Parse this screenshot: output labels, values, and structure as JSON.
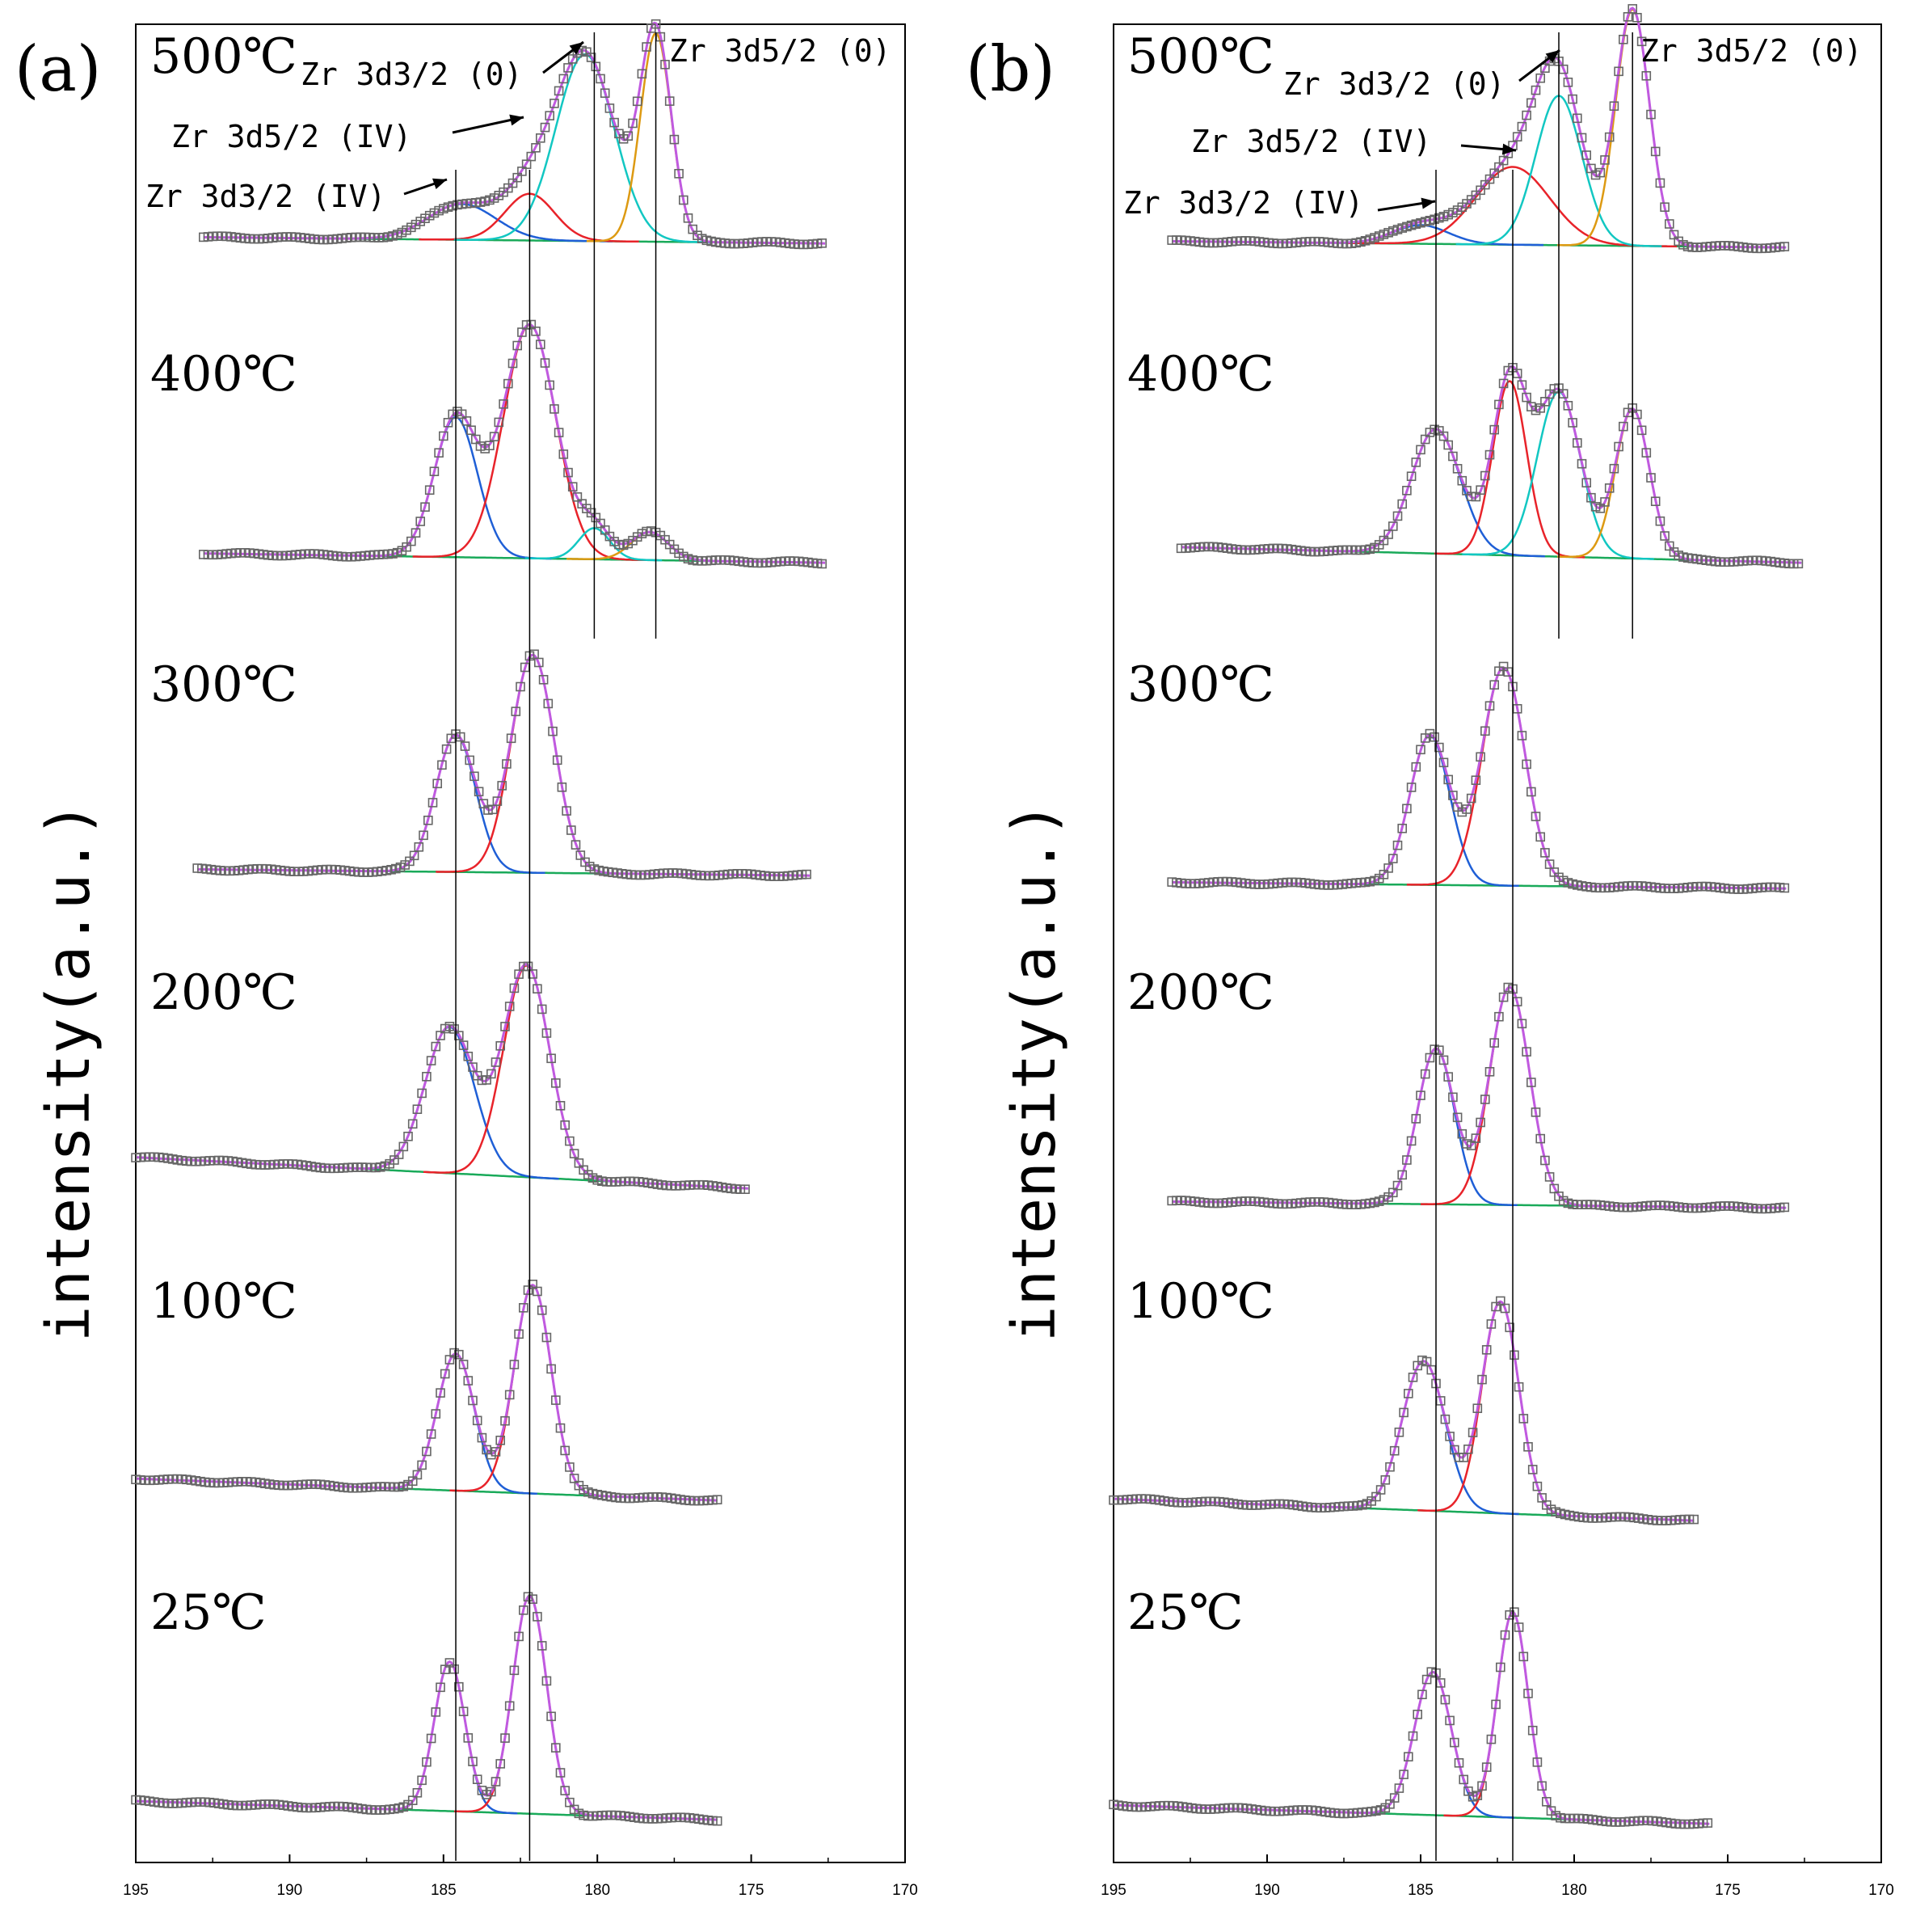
{
  "chart_data": [
    {
      "type": "line",
      "panel": "(a)",
      "ylabel": "intensity(a.u.)",
      "xlim": [
        195,
        170
      ],
      "x_ticks": [
        "195",
        "190",
        "185",
        "180",
        "175",
        "170"
      ],
      "reference_lines_eV": [
        184.6,
        182.2,
        180.1,
        178.1
      ],
      "peak_labels": [
        {
          "text": "Zr 3d3/2 (0)",
          "x_eV": 180.5
        },
        {
          "text": "Zr 3d5/2 (0)",
          "x_eV": 178.1
        },
        {
          "text": "Zr 3d5/2 (IV)",
          "x_eV": 182.0
        },
        {
          "text": "Zr 3d3/2 (IV)",
          "x_eV": 184.4
        }
      ],
      "spectra": [
        {
          "temperature": "500℃",
          "range_eV": [
            192.8,
            172.6
          ],
          "bg_left": 0.03,
          "bg_right": 0.01,
          "peaks": [
            {
              "name": "Zr 3d3/2 (IV)",
              "center": 184.4,
              "amp": 0.115,
              "sigma": 1.1,
              "color": "#1f5fd6"
            },
            {
              "name": "Zr 3d5/2 (IV)",
              "center": 182.2,
              "amp": 0.15,
              "sigma": 0.8,
              "color": "#e8232a"
            },
            {
              "name": "Zr 3d3/2 (0)",
              "center": 180.4,
              "amp": 0.6,
              "sigma": 0.95,
              "color": "#12c7c2"
            },
            {
              "name": "Zr 3d5/2 (0)",
              "center": 178.1,
              "amp": 0.67,
              "sigma": 0.5,
              "color": "#dd9a12"
            }
          ]
        },
        {
          "temperature": "400℃",
          "range_eV": [
            192.8,
            172.6
          ],
          "bg_left": 0.04,
          "bg_right": 0.01,
          "peaks": [
            {
              "name": "Zr 3d3/2 (IV)",
              "center": 184.6,
              "amp": 0.45,
              "sigma": 0.7,
              "color": "#1f5fd6"
            },
            {
              "name": "Zr 3d5/2 (IV)",
              "center": 182.2,
              "amp": 0.75,
              "sigma": 0.85,
              "color": "#e8232a"
            },
            {
              "name": "Zr 3d3/2 (0)",
              "center": 180.1,
              "amp": 0.1,
              "sigma": 0.5,
              "color": "#12c7c2"
            },
            {
              "name": "Zr 3d5/2 (0)",
              "center": 178.3,
              "amp": 0.09,
              "sigma": 0.6,
              "color": "#dd9a12"
            }
          ]
        },
        {
          "temperature": "300℃",
          "range_eV": [
            193.0,
            173.1
          ],
          "bg_left": 0.03,
          "bg_right": 0.01,
          "peaks": [
            {
              "name": "Zr 3d3/2 (IV)",
              "center": 184.6,
              "amp": 0.44,
              "sigma": 0.65,
              "color": "#1f5fd6"
            },
            {
              "name": "Zr 3d5/2 (IV)",
              "center": 182.1,
              "amp": 0.7,
              "sigma": 0.7,
              "color": "#e8232a"
            }
          ]
        },
        {
          "temperature": "200℃",
          "range_eV": [
            195.0,
            175.1
          ],
          "bg_left": 0.11,
          "bg_right": 0.01,
          "peaks": [
            {
              "name": "Zr 3d3/2 (IV)",
              "center": 184.8,
              "amp": 0.47,
              "sigma": 0.8,
              "color": "#1f5fd6"
            },
            {
              "name": "Zr 3d5/2 (IV)",
              "center": 182.3,
              "amp": 0.68,
              "sigma": 0.75,
              "color": "#e8232a"
            }
          ]
        },
        {
          "temperature": "100℃",
          "range_eV": [
            195.0,
            176.1
          ],
          "bg_left": 0.08,
          "bg_right": 0.01,
          "peaks": [
            {
              "name": "Zr 3d3/2 (IV)",
              "center": 184.6,
              "amp": 0.44,
              "sigma": 0.6,
              "color": "#1f5fd6"
            },
            {
              "name": "Zr 3d5/2 (IV)",
              "center": 182.1,
              "amp": 0.67,
              "sigma": 0.6,
              "color": "#e8232a"
            }
          ]
        },
        {
          "temperature": "25℃",
          "range_eV": [
            195.0,
            176.1
          ],
          "bg_left": 0.07,
          "bg_right": 0.01,
          "peaks": [
            {
              "name": "Zr 3d3/2 (IV)",
              "center": 184.8,
              "amp": 0.48,
              "sigma": 0.5,
              "color": "#1f5fd6"
            },
            {
              "name": "Zr 3d5/2 (IV)",
              "center": 182.2,
              "amp": 0.7,
              "sigma": 0.55,
              "color": "#e8232a"
            }
          ]
        }
      ]
    },
    {
      "type": "line",
      "panel": "(b)",
      "ylabel": "intensity(a.u.)",
      "xlim": [
        195,
        170
      ],
      "x_ticks": [
        "195",
        "190",
        "185",
        "180",
        "175",
        "170"
      ],
      "reference_lines_eV": [
        184.5,
        182.0,
        180.5,
        178.1
      ],
      "peak_labels": [
        {
          "text": "Zr 3d3/2 (0)",
          "x_eV": 180.5
        },
        {
          "text": "Zr 3d5/2 (0)",
          "x_eV": 178.0
        },
        {
          "text": "Zr 3d5/2 (IV)",
          "x_eV": 182.0
        },
        {
          "text": "Zr 3d3/2 (IV)",
          "x_eV": 184.5
        }
      ],
      "spectra": [
        {
          "temperature": "500℃",
          "range_eV": [
            193.1,
            173.1
          ],
          "bg_left": 0.03,
          "bg_right": 0.01,
          "peaks": [
            {
              "name": "Zr 3d3/2 (IV)",
              "center": 185.0,
              "amp": 0.06,
              "sigma": 0.9,
              "color": "#1f5fd6"
            },
            {
              "name": "Zr 3d5/2 (IV)",
              "center": 182.0,
              "amp": 0.25,
              "sigma": 1.2,
              "color": "#e8232a"
            },
            {
              "name": "Zr 3d3/2 (0)",
              "center": 180.5,
              "amp": 0.48,
              "sigma": 0.75,
              "color": "#12c7c2"
            },
            {
              "name": "Zr 3d5/2 (0)",
              "center": 178.1,
              "amp": 0.76,
              "sigma": 0.55,
              "color": "#dd9a12"
            }
          ]
        },
        {
          "temperature": "400℃",
          "range_eV": [
            192.8,
            172.6
          ],
          "bg_left": 0.06,
          "bg_right": 0.01,
          "peaks": [
            {
              "name": "Zr 3d3/2 (IV)",
              "center": 184.5,
              "amp": 0.4,
              "sigma": 0.8,
              "color": "#1f5fd6"
            },
            {
              "name": "Zr 3d5/2 (IV)",
              "center": 182.1,
              "amp": 0.56,
              "sigma": 0.55,
              "color": "#e8232a"
            },
            {
              "name": "Zr 3d3/2 (0)",
              "center": 180.5,
              "amp": 0.53,
              "sigma": 0.7,
              "color": "#12c7c2"
            },
            {
              "name": "Zr 3d5/2 (0)",
              "center": 178.1,
              "amp": 0.48,
              "sigma": 0.55,
              "color": "#dd9a12"
            }
          ]
        },
        {
          "temperature": "300℃",
          "range_eV": [
            193.1,
            173.1
          ],
          "bg_left": 0.03,
          "bg_right": 0.01,
          "peaks": [
            {
              "name": "Zr 3d3/2 (IV)",
              "center": 184.7,
              "amp": 0.48,
              "sigma": 0.65,
              "color": "#1f5fd6"
            },
            {
              "name": "Zr 3d5/2 (IV)",
              "center": 182.3,
              "amp": 0.7,
              "sigma": 0.7,
              "color": "#e8232a"
            }
          ]
        },
        {
          "temperature": "200℃",
          "range_eV": [
            193.1,
            173.1
          ],
          "bg_left": 0.03,
          "bg_right": 0.01,
          "peaks": [
            {
              "name": "Zr 3d3/2 (IV)",
              "center": 184.5,
              "amp": 0.5,
              "sigma": 0.6,
              "color": "#1f5fd6"
            },
            {
              "name": "Zr 3d5/2 (IV)",
              "center": 182.1,
              "amp": 0.7,
              "sigma": 0.65,
              "color": "#e8232a"
            }
          ]
        },
        {
          "temperature": "100℃",
          "range_eV": [
            195.0,
            176.1
          ],
          "bg_left": 0.08,
          "bg_right": 0.01,
          "peaks": [
            {
              "name": "Zr 3d3/2 (IV)",
              "center": 184.9,
              "amp": 0.48,
              "sigma": 0.7,
              "color": "#1f5fd6"
            },
            {
              "name": "Zr 3d5/2 (IV)",
              "center": 182.4,
              "amp": 0.68,
              "sigma": 0.6,
              "color": "#e8232a"
            }
          ]
        },
        {
          "temperature": "25℃",
          "range_eV": [
            195.0,
            175.6
          ],
          "bg_left": 0.07,
          "bg_right": 0.01,
          "peaks": [
            {
              "name": "Zr 3d3/2 (IV)",
              "center": 184.6,
              "amp": 0.46,
              "sigma": 0.6,
              "color": "#1f5fd6"
            },
            {
              "name": "Zr 3d5/2 (IV)",
              "center": 182.0,
              "amp": 0.66,
              "sigma": 0.5,
              "color": "#e8232a"
            }
          ]
        }
      ]
    }
  ],
  "colors": {
    "envelope": "#c05ae0",
    "background": "#1aaa5a",
    "marker": "#666666",
    "axis": "#000000",
    "reference_line": "#000000"
  }
}
